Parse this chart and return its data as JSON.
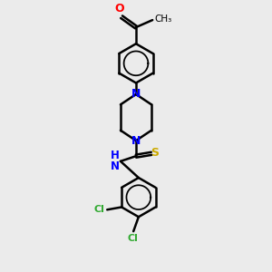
{
  "bg_color": "#ebebeb",
  "lw": 1.8,
  "figsize": [
    3.0,
    3.0
  ],
  "dpi": 100,
  "colors": {
    "O": "#ff0000",
    "N": "#0000ff",
    "S": "#ccaa00",
    "Cl": "#33aa33",
    "C": "#000000"
  },
  "xlim": [
    -0.6,
    1.6
  ],
  "ylim": [
    -2.8,
    2.2
  ]
}
